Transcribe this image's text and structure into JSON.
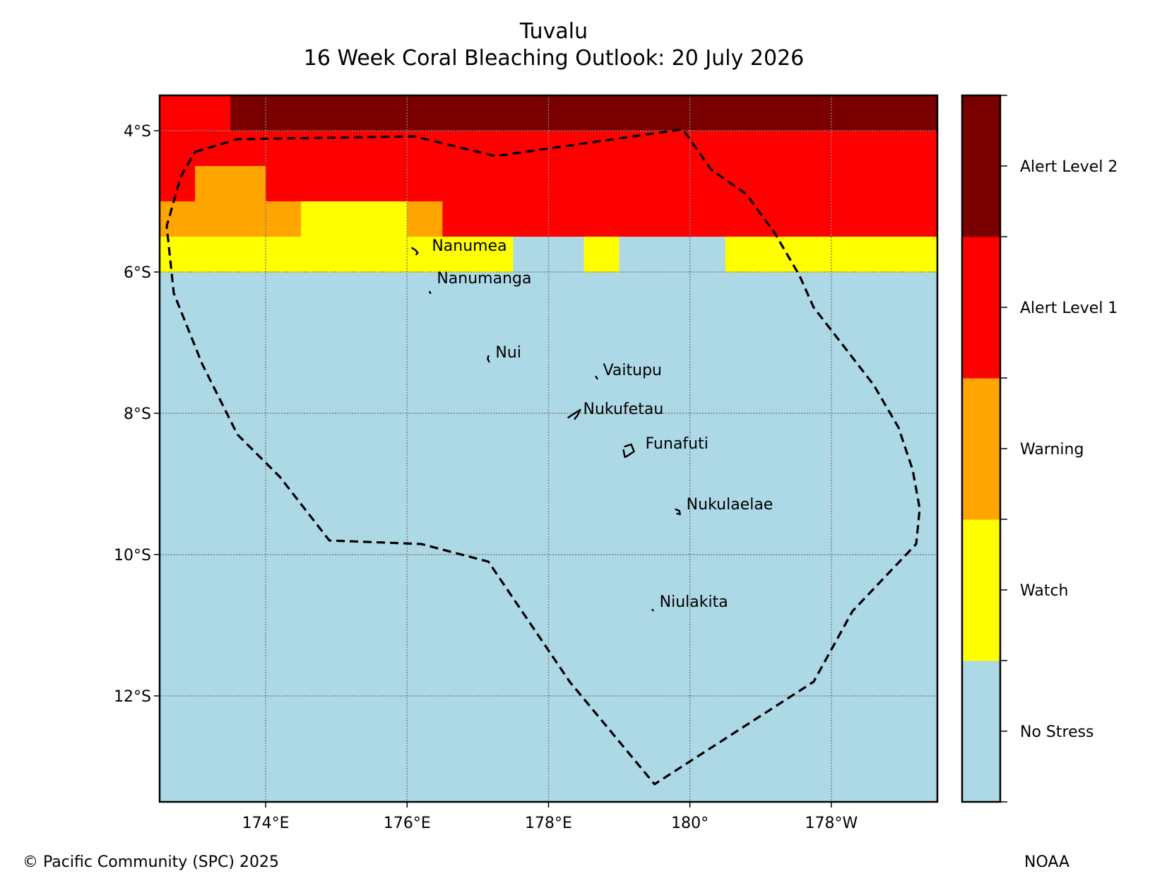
{
  "title": {
    "line1": "Tuvalu",
    "line2": "16 Week Coral Bleaching Outlook: 20 July 2026"
  },
  "map": {
    "lon_range": [
      172.5,
      -176.5
    ],
    "lat_range": [
      -13.5,
      -3.5
    ],
    "lon_ticks": [
      {
        "lon": 174,
        "label": "174°E"
      },
      {
        "lon": 176,
        "label": "176°E"
      },
      {
        "lon": 178,
        "label": "178°E"
      },
      {
        "lon": 180,
        "label": "180°"
      },
      {
        "lon": 182,
        "label": "178°W"
      }
    ],
    "lat_ticks": [
      {
        "lat": -4,
        "label": "4°S"
      },
      {
        "lat": -6,
        "label": "6°S"
      },
      {
        "lat": -8,
        "label": "8°S"
      },
      {
        "lat": -10,
        "label": "10°S"
      },
      {
        "lat": -12,
        "label": "12°S"
      }
    ],
    "grid_cell_deg": 0.5,
    "row_start_lats": [
      -3.5,
      -4.0,
      -4.5,
      -5.0,
      -5.5
    ],
    "col_start_lon": 172.5,
    "rows_alert_levels": [
      [
        3,
        3,
        4,
        4,
        4,
        4,
        4,
        4,
        4,
        4,
        4,
        4,
        4,
        4,
        4,
        4,
        4,
        4,
        4,
        4,
        4,
        4
      ],
      [
        3,
        3,
        3,
        3,
        3,
        3,
        3,
        3,
        3,
        3,
        3,
        3,
        3,
        3,
        3,
        3,
        3,
        3,
        3,
        3,
        3,
        3
      ],
      [
        3,
        2,
        2,
        3,
        3,
        3,
        3,
        3,
        3,
        3,
        3,
        3,
        3,
        3,
        3,
        3,
        3,
        3,
        3,
        3,
        3,
        3
      ],
      [
        2,
        2,
        2,
        2,
        1,
        1,
        1,
        2,
        3,
        3,
        3,
        3,
        3,
        3,
        3,
        3,
        3,
        3,
        3,
        3,
        3,
        3
      ],
      [
        1,
        1,
        1,
        1,
        1,
        1,
        1,
        1,
        1,
        1,
        0,
        0,
        1,
        0,
        0,
        0,
        1,
        1,
        1,
        1,
        1,
        1
      ]
    ],
    "background_level": 0,
    "eez_boundary": [
      [
        173.0,
        -4.3
      ],
      [
        173.6,
        -4.12
      ],
      [
        176.1,
        -4.08
      ],
      [
        177.25,
        -4.36
      ],
      [
        179.9,
        -3.98
      ],
      [
        180.3,
        -4.55
      ],
      [
        180.8,
        -4.9
      ],
      [
        181.2,
        -5.45
      ],
      [
        181.55,
        -6.05
      ],
      [
        181.75,
        -6.5
      ],
      [
        182.6,
        -7.6
      ],
      [
        182.95,
        -8.2
      ],
      [
        183.15,
        -8.8
      ],
      [
        183.25,
        -9.35
      ],
      [
        183.2,
        -9.85
      ],
      [
        182.3,
        -10.8
      ],
      [
        181.75,
        -11.8
      ],
      [
        179.5,
        -13.25
      ],
      [
        178.3,
        -11.8
      ],
      [
        177.15,
        -10.1
      ],
      [
        176.2,
        -9.85
      ],
      [
        174.9,
        -9.8
      ],
      [
        174.2,
        -8.9
      ],
      [
        173.6,
        -8.3
      ],
      [
        173.1,
        -7.3
      ],
      [
        172.7,
        -6.3
      ],
      [
        172.6,
        -5.35
      ],
      [
        172.8,
        -4.65
      ],
      [
        173.0,
        -4.3
      ]
    ],
    "islands": [
      {
        "name": "Nanumea",
        "lon": 176.1,
        "lat": -5.67,
        "label_dlon": 0.25,
        "label_dlat": 0.05,
        "outline": [
          [
            -0.03,
            -0.01
          ],
          [
            0.02,
            0.02
          ],
          [
            0.05,
            0.06
          ],
          [
            0.03,
            0.08
          ]
        ]
      },
      {
        "name": "Nanumanga",
        "lon": 176.32,
        "lat": -6.28,
        "label_dlon": 0.1,
        "label_dlat": 0.2,
        "outline": [
          [
            0,
            0
          ],
          [
            0.01,
            0.02
          ]
        ]
      },
      {
        "name": "Nui",
        "lon": 177.15,
        "lat": -7.23,
        "label_dlon": 0.1,
        "label_dlat": 0.1,
        "outline": [
          [
            0,
            -0.04
          ],
          [
            -0.01,
            0.0
          ],
          [
            0.01,
            0.04
          ]
        ]
      },
      {
        "name": "Vaitupu",
        "lon": 178.67,
        "lat": -7.48,
        "label_dlon": 0.1,
        "label_dlat": 0.1,
        "outline": [
          [
            0,
            0
          ],
          [
            0.02,
            0.03
          ]
        ]
      },
      {
        "name": "Nukufetau",
        "lon": 178.37,
        "lat": -8.0,
        "label_dlon": 0.12,
        "label_dlat": 0.07,
        "outline": [
          [
            -0.09,
            0.06
          ],
          [
            0.0,
            0.0
          ],
          [
            0.08,
            -0.05
          ],
          [
            0.04,
            0.03
          ],
          [
            0.0,
            0.08
          ]
        ]
      },
      {
        "name": "Funafuti",
        "lon": 179.12,
        "lat": -8.52,
        "label_dlon": 0.25,
        "label_dlat": 0.1,
        "outline": [
          [
            -0.04,
            -0.05
          ],
          [
            0.05,
            -0.08
          ],
          [
            0.09,
            0.02
          ],
          [
            0.0,
            0.08
          ],
          [
            -0.04,
            0.1
          ],
          [
            -0.06,
            0.0
          ]
        ]
      },
      {
        "name": "Nukulaelae",
        "lon": 179.83,
        "lat": -9.38,
        "label_dlon": 0.12,
        "label_dlat": 0.1,
        "outline": [
          [
            -0.03,
            -0.02
          ],
          [
            0.02,
            0.0
          ],
          [
            0.03,
            0.05
          ],
          [
            -0.01,
            0.04
          ]
        ]
      },
      {
        "name": "Niulakita",
        "lon": 179.47,
        "lat": -10.78,
        "label_dlon": 0.1,
        "label_dlat": 0.12,
        "outline": [
          [
            0,
            0
          ],
          [
            0.01,
            0.01
          ]
        ]
      }
    ]
  },
  "legend": {
    "levels": [
      {
        "label": "No Stress",
        "color": "#add8e6"
      },
      {
        "label": "Watch",
        "color": "#ffff00"
      },
      {
        "label": "Warning",
        "color": "#ffa500"
      },
      {
        "label": "Alert Level 1",
        "color": "#ff0000"
      },
      {
        "label": "Alert Level 2",
        "color": "#7a0000"
      }
    ]
  },
  "footer": {
    "credit": "© Pacific Community (SPC) 2025",
    "source": "NOAA"
  }
}
